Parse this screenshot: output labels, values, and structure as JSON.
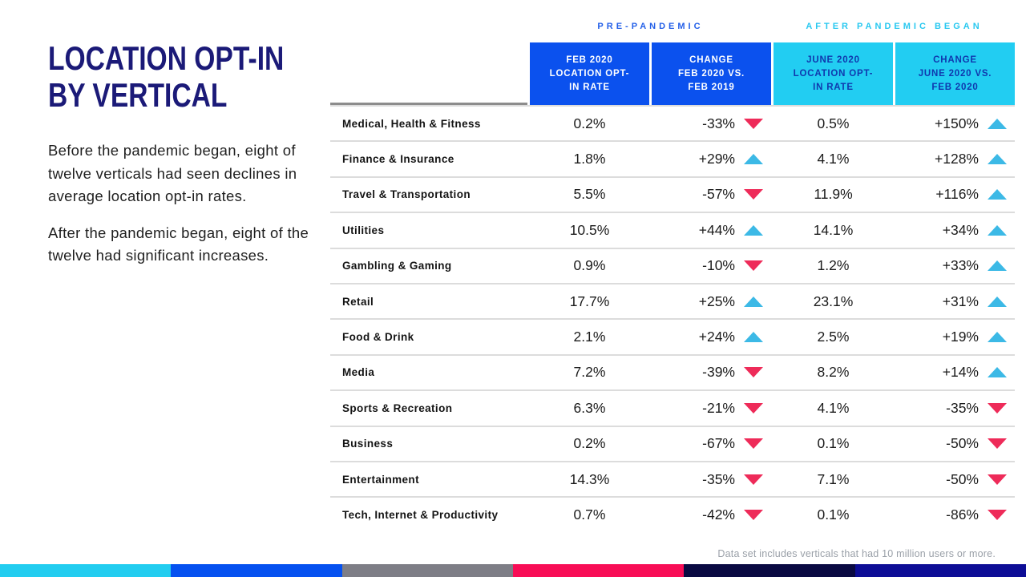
{
  "left": {
    "title_line1": "LOCATION OPT-IN",
    "title_line2": "BY VERTICAL",
    "paragraph1": "Before the pandemic began, eight of twelve verticals had seen declines in average location opt-in rates.",
    "paragraph2": "After the pandemic began, eight of the twelve had significant increases."
  },
  "table": {
    "groups": [
      {
        "label": "PRE-PANDEMIC",
        "color": "#2460e8"
      },
      {
        "label": "AFTER PANDEMIC BEGAN",
        "color": "#29c8f0"
      }
    ],
    "columns": [
      {
        "id": "feb-2020-rate",
        "group": "pre",
        "lines": [
          "FEB 2020",
          "LOCATION OPT-",
          "IN RATE"
        ]
      },
      {
        "id": "change-feb-2020-vs-feb-2019",
        "group": "pre",
        "lines": [
          "CHANGE",
          "FEB 2020 VS.",
          "FEB 2019"
        ]
      },
      {
        "id": "june-2020-rate",
        "group": "after",
        "lines": [
          "JUNE 2020",
          "LOCATION OPT-",
          "IN RATE"
        ]
      },
      {
        "id": "change-june-2020-vs-feb-2020",
        "group": "after",
        "lines": [
          "CHANGE",
          "JUNE 2020 VS.",
          "FEB 2020"
        ]
      }
    ]
  },
  "chart_data": {
    "type": "table",
    "title": "Location Opt-In by Vertical",
    "columns": [
      "Vertical",
      "Feb 2020 Location Opt-In Rate",
      "Change Feb 2020 vs. Feb 2019",
      "June 2020 Location Opt-In Rate",
      "Change June 2020 vs. Feb 2020"
    ],
    "rows": [
      {
        "vertical": "Medical, Health & Fitness",
        "feb_2020_rate": "0.2%",
        "change_feb": "-33%",
        "change_feb_direction": "down",
        "june_2020_rate": "0.5%",
        "change_june": "+150%",
        "change_june_direction": "up"
      },
      {
        "vertical": "Finance & Insurance",
        "feb_2020_rate": "1.8%",
        "change_feb": "+29%",
        "change_feb_direction": "up",
        "june_2020_rate": "4.1%",
        "change_june": "+128%",
        "change_june_direction": "up"
      },
      {
        "vertical": "Travel & Transportation",
        "feb_2020_rate": "5.5%",
        "change_feb": "-57%",
        "change_feb_direction": "down",
        "june_2020_rate": "11.9%",
        "change_june": "+116%",
        "change_june_direction": "up"
      },
      {
        "vertical": "Utilities",
        "feb_2020_rate": "10.5%",
        "change_feb": "+44%",
        "change_feb_direction": "up",
        "june_2020_rate": "14.1%",
        "change_june": "+34%",
        "change_june_direction": "up"
      },
      {
        "vertical": "Gambling & Gaming",
        "feb_2020_rate": "0.9%",
        "change_feb": "-10%",
        "change_feb_direction": "down",
        "june_2020_rate": "1.2%",
        "change_june": "+33%",
        "change_june_direction": "up"
      },
      {
        "vertical": "Retail",
        "feb_2020_rate": "17.7%",
        "change_feb": "+25%",
        "change_feb_direction": "up",
        "june_2020_rate": "23.1%",
        "change_june": "+31%",
        "change_june_direction": "up"
      },
      {
        "vertical": "Food & Drink",
        "feb_2020_rate": "2.1%",
        "change_feb": "+24%",
        "change_feb_direction": "up",
        "june_2020_rate": "2.5%",
        "change_june": "+19%",
        "change_june_direction": "up"
      },
      {
        "vertical": "Media",
        "feb_2020_rate": "7.2%",
        "change_feb": "-39%",
        "change_feb_direction": "down",
        "june_2020_rate": "8.2%",
        "change_june": "+14%",
        "change_june_direction": "up"
      },
      {
        "vertical": "Sports & Recreation",
        "feb_2020_rate": "6.3%",
        "change_feb": "-21%",
        "change_feb_direction": "down",
        "june_2020_rate": "4.1%",
        "change_june": "-35%",
        "change_june_direction": "down"
      },
      {
        "vertical": "Business",
        "feb_2020_rate": "0.2%",
        "change_feb": "-67%",
        "change_feb_direction": "down",
        "june_2020_rate": "0.1%",
        "change_june": "-50%",
        "change_june_direction": "down"
      },
      {
        "vertical": "Entertainment",
        "feb_2020_rate": "14.3%",
        "change_feb": "-35%",
        "change_feb_direction": "down",
        "june_2020_rate": "7.1%",
        "change_june": "-50%",
        "change_june_direction": "down"
      },
      {
        "vertical": "Tech, Internet & Productivity",
        "feb_2020_rate": "0.7%",
        "change_feb": "-42%",
        "change_feb_direction": "down",
        "june_2020_rate": "0.1%",
        "change_june": "-86%",
        "change_june_direction": "down"
      }
    ]
  },
  "footnote": "Data set includes verticals that had 10 million users or more.",
  "colors": {
    "title_navy": "#1b1a78",
    "header_blue": "#0b51ee",
    "header_cyan": "#22cdf2",
    "header_cyan_text": "#1038ae",
    "up_arrow": "#3cb9e6",
    "down_arrow": "#ee2b59"
  },
  "footer_bar": {
    "colors": [
      "#22cdf0",
      "#0551f0",
      "#7e7e86",
      "#f80d56",
      "#0a0a42",
      "#0d0d96"
    ]
  }
}
